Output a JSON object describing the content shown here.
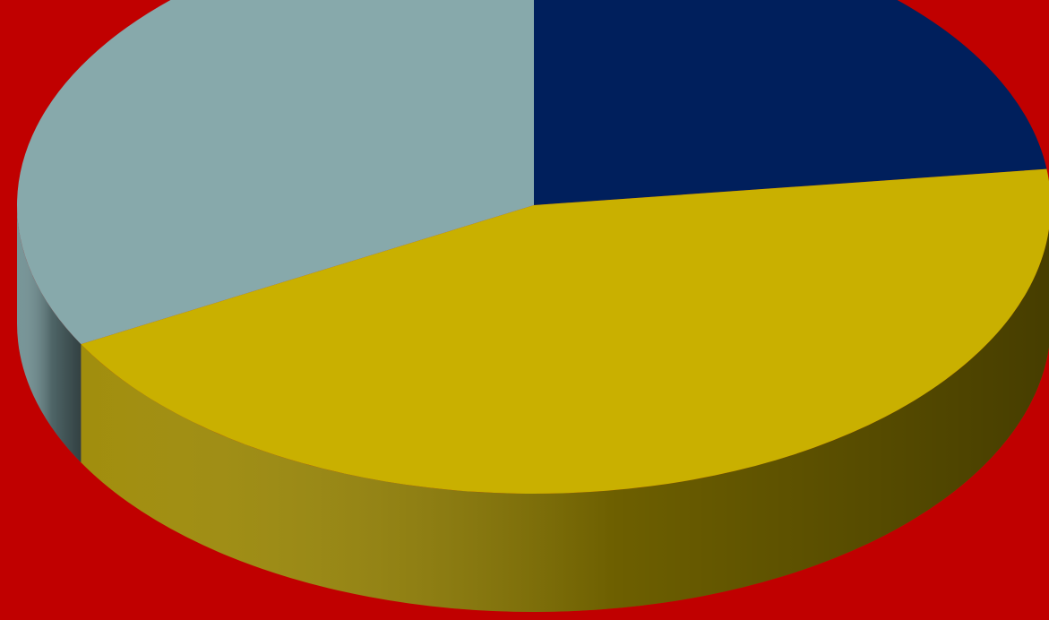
{
  "chart_data": {
    "type": "pie",
    "style": "3d",
    "slices": [
      {
        "value": 23,
        "color": "#001F5C",
        "side_color": "#00153F"
      },
      {
        "value": 44,
        "color": "#C9B000",
        "side_color": "#9C8800"
      },
      {
        "value": 33,
        "color": "#87A9AB",
        "side_color": "#6F8F92"
      }
    ],
    "start_angle_deg": -90,
    "direction": "clockwise",
    "background_color": "#C00000"
  }
}
